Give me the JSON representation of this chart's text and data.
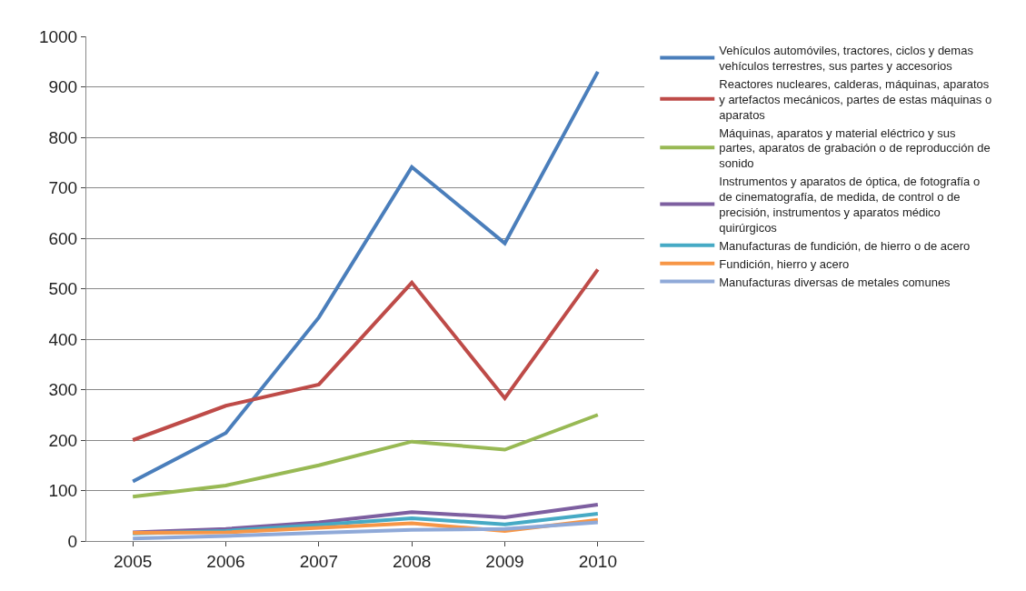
{
  "chart_data": {
    "type": "line",
    "categories": [
      "2005",
      "2006",
      "2007",
      "2008",
      "2009",
      "2010"
    ],
    "series": [
      {
        "name": "Vehículos automóviles, tractores, ciclos y demas vehículos terrestres, sus partes y accesorios",
        "color": "#4a7ebb",
        "values": [
          118,
          214,
          443,
          741,
          590,
          930
        ]
      },
      {
        "name": "Reactores nucleares, calderas, máquinas, aparatos y artefactos mecánicos, partes de estas máquinas o aparatos",
        "color": "#be4b48",
        "values": [
          200,
          268,
          310,
          512,
          283,
          538
        ]
      },
      {
        "name": "Máquinas, aparatos y material eléctrico y sus partes, aparatos de grabación o de reproducción de sonido",
        "color": "#98b954",
        "values": [
          88,
          110,
          150,
          197,
          181,
          250
        ]
      },
      {
        "name": "Instrumentos y aparatos de óptica, de fotografía o de cinematografía, de medida, de control o de precisión, instrumentos y aparatos médico quirúrgicos",
        "color": "#7d5fa0",
        "values": [
          17,
          24,
          37,
          57,
          47,
          72
        ]
      },
      {
        "name": "Manufacturas de fundición, de hierro o de acero",
        "color": "#46aac5",
        "values": [
          15,
          20,
          32,
          45,
          33,
          54
        ]
      },
      {
        "name": "Fundición, hierro y acero",
        "color": "#f79646",
        "values": [
          16,
          17,
          26,
          35,
          20,
          42
        ]
      },
      {
        "name": "Manufacturas diversas de metales comunes",
        "color": "#8fa9d8",
        "values": [
          5,
          10,
          16,
          22,
          24,
          37
        ]
      }
    ],
    "ylim": [
      0,
      1000
    ],
    "yticks": [
      0,
      100,
      200,
      300,
      400,
      500,
      600,
      700,
      800,
      900,
      1000
    ],
    "grid": "y",
    "legend": "right",
    "marker": "none",
    "line_style": "solid"
  }
}
